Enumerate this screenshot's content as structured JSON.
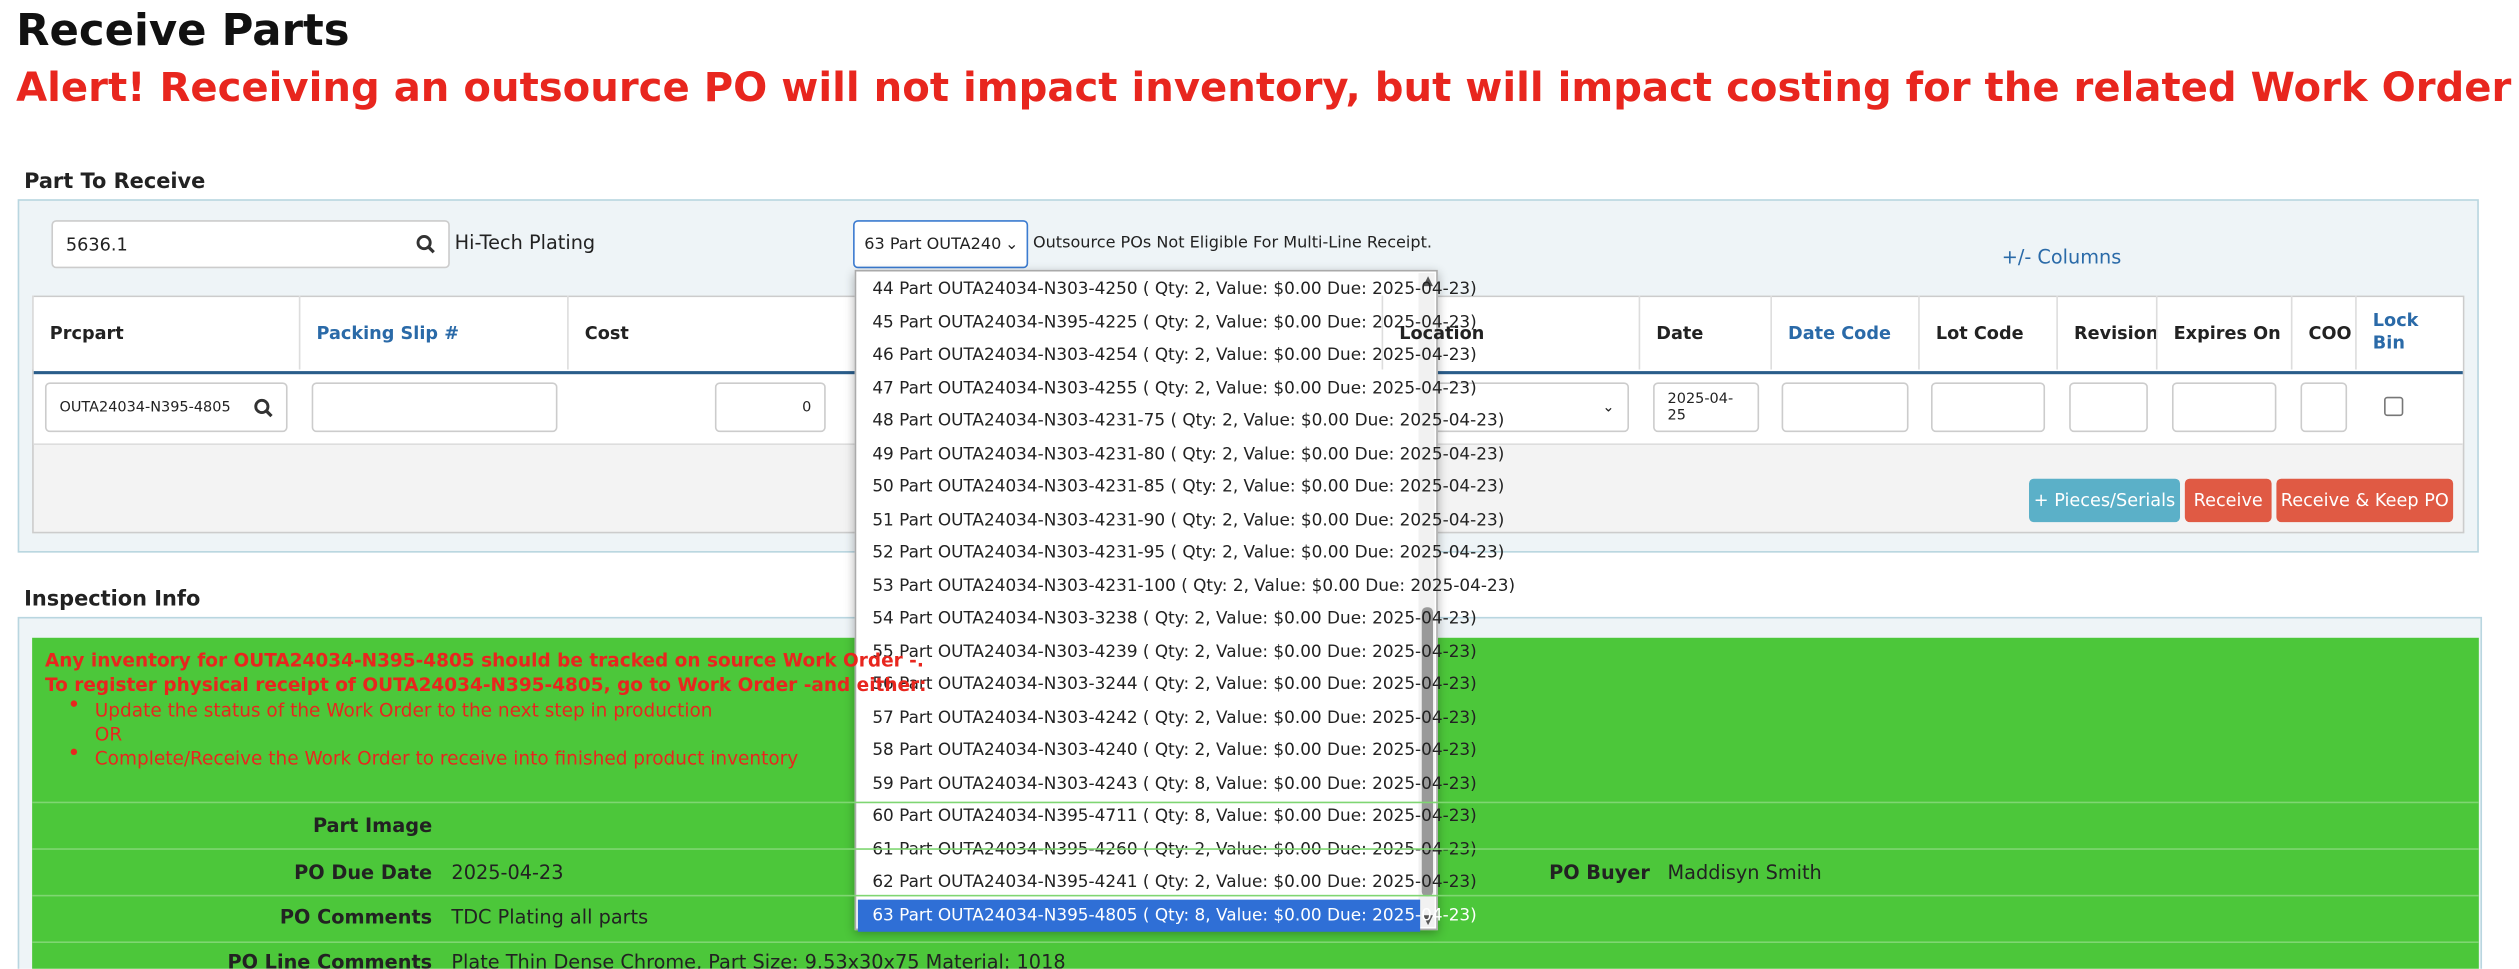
{
  "header": {
    "title": "Receive Parts",
    "alert": "Alert! Receiving an outsource PO will not impact inventory, but will impact costing for the related Work Order"
  },
  "part_to_receive": {
    "heading": "Part To Receive",
    "search_value": "5636.1",
    "vendor": "Hi-Tech Plating",
    "po_select": "63 Part OUTA240",
    "note": "Outsource POs Not Eligible For Multi-Line Receipt.",
    "columns_link": "+/- Columns",
    "table": {
      "headers": [
        "Prcpart",
        "Packing Slip #",
        "Cost",
        "Location",
        "Date",
        "Date Code",
        "Lot Code",
        "Revision",
        "Expires On",
        "COO",
        "Lock Bin"
      ],
      "row": {
        "prcpart": "OUTA24034-N395-4805",
        "cost": "0",
        "date": "2025-04-25"
      }
    },
    "buttons": [
      "+ Pieces/Serials",
      "Receive",
      "Receive & Keep PO"
    ],
    "dropdown_options": [
      "44 Part OUTA24034-N303-4250 ( Qty: 2, Value: $0.00 Due: 2025-04-23)",
      "45 Part OUTA24034-N395-4225 ( Qty: 2, Value: $0.00 Due: 2025-04-23)",
      "46 Part OUTA24034-N303-4254 ( Qty: 2, Value: $0.00 Due: 2025-04-23)",
      "47 Part OUTA24034-N303-4255 ( Qty: 2, Value: $0.00 Due: 2025-04-23)",
      "48 Part OUTA24034-N303-4231-75 ( Qty: 2, Value: $0.00 Due: 2025-04-23)",
      "49 Part OUTA24034-N303-4231-80 ( Qty: 2, Value: $0.00 Due: 2025-04-23)",
      "50 Part OUTA24034-N303-4231-85 ( Qty: 2, Value: $0.00 Due: 2025-04-23)",
      "51 Part OUTA24034-N303-4231-90 ( Qty: 2, Value: $0.00 Due: 2025-04-23)",
      "52 Part OUTA24034-N303-4231-95 ( Qty: 2, Value: $0.00 Due: 2025-04-23)",
      "53 Part OUTA24034-N303-4231-100 ( Qty: 2, Value: $0.00 Due: 2025-04-23)",
      "54 Part OUTA24034-N303-3238 ( Qty: 2, Value: $0.00 Due: 2025-04-23)",
      "55 Part OUTA24034-N303-4239 ( Qty: 2, Value: $0.00 Due: 2025-04-23)",
      "56 Part OUTA24034-N303-3244 ( Qty: 2, Value: $0.00 Due: 2025-04-23)",
      "57 Part OUTA24034-N303-4242 ( Qty: 2, Value: $0.00 Due: 2025-04-23)",
      "58 Part OUTA24034-N303-4240 ( Qty: 2, Value: $0.00 Due: 2025-04-23)",
      "59 Part OUTA24034-N303-4243 ( Qty: 8, Value: $0.00 Due: 2025-04-23)",
      "60 Part OUTA24034-N395-4711 ( Qty: 8, Value: $0.00 Due: 2025-04-23)",
      "61 Part OUTA24034-N395-4260 ( Qty: 2, Value: $0.00 Due: 2025-04-23)",
      "62 Part OUTA24034-N395-4241 ( Qty: 2, Value: $0.00 Due: 2025-04-23)",
      "63 Part OUTA24034-N395-4805 ( Qty: 8, Value: $0.00 Due: 2025-04-23)"
    ]
  },
  "inspection_info": {
    "heading": "Inspection Info",
    "warning_lines": [
      "Any inventory for OUTA24034-N395-4805 should be tracked on source Work Order -.",
      "To register physical receipt of OUTA24034-N395-4805, go to Work Order -and either:"
    ],
    "bullets": [
      "Update the status of the Work Order to the next step in production",
      "OR",
      "Complete/Receive the Work Order to receive into finished product inventory"
    ],
    "fields": [
      {
        "label": "Part Image"
      },
      {
        "label": "PO Due Date",
        "value": "2025-04-23"
      },
      {
        "label": "PO Buyer",
        "value": "Maddisyn Smith"
      },
      {
        "label": "PO Comments",
        "value": "TDC Plating all parts"
      },
      {
        "label": "PO Line Comments",
        "value": "Plate Thin Dense Chrome, Part Size: 9.53x30x75 Material: 1018"
      }
    ]
  }
}
